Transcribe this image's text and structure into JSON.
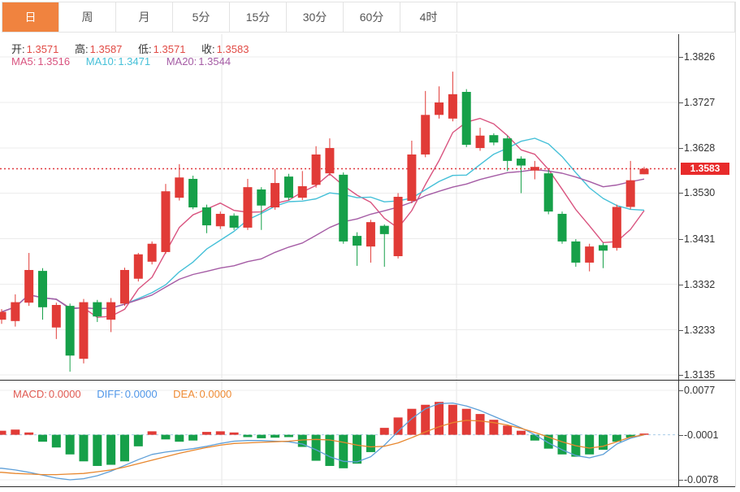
{
  "tabs": [
    {
      "label": "日",
      "active": true
    },
    {
      "label": "周",
      "active": false
    },
    {
      "label": "月",
      "active": false
    },
    {
      "label": "5分",
      "active": false
    },
    {
      "label": "15分",
      "active": false
    },
    {
      "label": "30分",
      "active": false
    },
    {
      "label": "60分",
      "active": false
    },
    {
      "label": "4时",
      "active": false
    }
  ],
  "ohlc_legend": {
    "open_label": "开:",
    "open_value": "1.3571",
    "high_label": "高:",
    "high_value": "1.3587",
    "low_label": "低:",
    "low_value": "1.3571",
    "close_label": "收:",
    "close_value": "1.3583"
  },
  "ma_legend": {
    "ma5_label": "MA5:",
    "ma5_value": "1.3516",
    "ma10_label": "MA10:",
    "ma10_value": "1.3471",
    "ma20_label": "MA20:",
    "ma20_value": "1.3544"
  },
  "macd_legend": {
    "macd_label": "MACD:",
    "macd_value": "0.0000",
    "diff_label": "DIFF:",
    "diff_value": "0.0000",
    "dea_label": "DEA:",
    "dea_value": "0.0000"
  },
  "price_axis": {
    "ticks": [
      {
        "label": "1.3826",
        "price": 1.3826
      },
      {
        "label": "1.3727",
        "price": 1.3727
      },
      {
        "label": "1.3628",
        "price": 1.3628
      },
      {
        "label": "1.3530",
        "price": 1.353
      },
      {
        "label": "1.3431",
        "price": 1.3431
      },
      {
        "label": "1.3332",
        "price": 1.3332
      },
      {
        "label": "1.3233",
        "price": 1.3233
      },
      {
        "label": "1.3135",
        "price": 1.3135
      }
    ],
    "last_price_tag": {
      "label": "1.3583",
      "price": 1.3583
    }
  },
  "macd_axis": {
    "ticks": [
      {
        "label": "0.0077",
        "value": 0.0077
      },
      {
        "label": "-0.0001",
        "value": -0.0001
      },
      {
        "label": "-0.0078",
        "value": -0.0078
      }
    ]
  },
  "colors": {
    "up": "#e13b37",
    "down": "#16a049",
    "ma5": "#d9537f",
    "ma10": "#45c0d8",
    "ma20": "#a55ca5",
    "diff_line": "#5e9fd8",
    "dea_line": "#e8872e",
    "zero_dash": "#a8cbe8",
    "dotted_price_line": "#e0393f",
    "tag_bg": "#e82b2b",
    "tab_active_bg": "#f0833f",
    "grid": "#ececec",
    "vgrid": "#e6e6e6",
    "value_red": "#e14a44",
    "diff_text": "#4f96e8",
    "dea_text": "#ef8b34",
    "macd_text": "#e05a52"
  },
  "chart_data": {
    "type": "candlestick",
    "title": "",
    "legend_position": "top-left",
    "grid": true,
    "price_range": [
      1.3135,
      1.3826
    ],
    "macd_range": [
      -0.0078,
      0.0077
    ],
    "last_price": 1.3583,
    "ohlc_order": [
      "open",
      "high",
      "low",
      "close"
    ],
    "candles": [
      [
        1.3255,
        1.3278,
        1.3246,
        1.3272
      ],
      [
        1.3252,
        1.331,
        1.324,
        1.3293
      ],
      [
        1.3292,
        1.34,
        1.3285,
        1.3363
      ],
      [
        1.3361,
        1.3367,
        1.3255,
        1.3282
      ],
      [
        1.3238,
        1.3292,
        1.3213,
        1.3287
      ],
      [
        1.3285,
        1.329,
        1.3142,
        1.3177
      ],
      [
        1.317,
        1.33,
        1.316,
        1.3293
      ],
      [
        1.3293,
        1.3298,
        1.325,
        1.3262
      ],
      [
        1.3255,
        1.3302,
        1.3228,
        1.3293
      ],
      [
        1.329,
        1.3368,
        1.3285,
        1.3363
      ],
      [
        1.3344,
        1.34,
        1.3338,
        1.3397
      ],
      [
        1.3381,
        1.3425,
        1.3375,
        1.342
      ],
      [
        1.3402,
        1.355,
        1.3398,
        1.3534
      ],
      [
        1.352,
        1.3593,
        1.3514,
        1.3564
      ],
      [
        1.3561,
        1.3568,
        1.3495,
        1.3499
      ],
      [
        1.3499,
        1.3505,
        1.3443,
        1.346
      ],
      [
        1.3458,
        1.349,
        1.3452,
        1.3485
      ],
      [
        1.3481,
        1.3486,
        1.345,
        1.3455
      ],
      [
        1.3455,
        1.3561,
        1.345,
        1.3543
      ],
      [
        1.3538,
        1.3543,
        1.345,
        1.3503
      ],
      [
        1.3499,
        1.3582,
        1.3494,
        1.3552
      ],
      [
        1.3566,
        1.3572,
        1.3515,
        1.352
      ],
      [
        1.352,
        1.3578,
        1.3515,
        1.3545
      ],
      [
        1.3548,
        1.3632,
        1.3542,
        1.3614
      ],
      [
        1.3573,
        1.3649,
        1.3568,
        1.3628
      ],
      [
        1.357,
        1.3575,
        1.342,
        1.3425
      ],
      [
        1.3437,
        1.3445,
        1.3372,
        1.3416
      ],
      [
        1.3414,
        1.3472,
        1.3379,
        1.3467
      ],
      [
        1.3459,
        1.3462,
        1.337,
        1.3441
      ],
      [
        1.3393,
        1.353,
        1.3388,
        1.3522
      ],
      [
        1.3513,
        1.3644,
        1.3508,
        1.3614
      ],
      [
        1.3614,
        1.3752,
        1.3608,
        1.37
      ],
      [
        1.37,
        1.3762,
        1.3692,
        1.3727
      ],
      [
        1.3692,
        1.3794,
        1.3686,
        1.3745
      ],
      [
        1.375,
        1.3756,
        1.363,
        1.3635
      ],
      [
        1.3628,
        1.3672,
        1.3622,
        1.3655
      ],
      [
        1.3656,
        1.366,
        1.3634,
        1.364
      ],
      [
        1.3649,
        1.3655,
        1.3578,
        1.36
      ],
      [
        1.3605,
        1.361,
        1.353,
        1.359
      ],
      [
        1.3579,
        1.36,
        1.356,
        1.3587
      ],
      [
        1.3573,
        1.358,
        1.3484,
        1.349
      ],
      [
        1.3485,
        1.349,
        1.342,
        1.3425
      ],
      [
        1.3425,
        1.343,
        1.337,
        1.3379
      ],
      [
        1.3379,
        1.342,
        1.336,
        1.3414
      ],
      [
        1.3417,
        1.3422,
        1.3367,
        1.3405
      ],
      [
        1.3411,
        1.3505,
        1.3405,
        1.35
      ],
      [
        1.35,
        1.36,
        1.3495,
        1.3558
      ],
      [
        1.3571,
        1.3587,
        1.3571,
        1.3583
      ]
    ],
    "ma_periods": [
      5,
      10,
      20
    ],
    "macd": {
      "hist": [
        0.0007,
        0.0009,
        0.0004,
        -0.0012,
        -0.0022,
        -0.0034,
        -0.0046,
        -0.0054,
        -0.0052,
        -0.0046,
        -0.002,
        0.0006,
        -0.0008,
        -0.0012,
        -0.001,
        0.0005,
        0.0006,
        0.0004,
        -0.0004,
        -0.0006,
        -0.0005,
        -0.0004,
        -0.0021,
        -0.0045,
        -0.0054,
        -0.0058,
        -0.005,
        -0.003,
        0.0012,
        0.003,
        0.0045,
        0.0052,
        0.0057,
        0.0052,
        0.0045,
        0.0036,
        0.0026,
        0.0016,
        0.0007,
        -0.001,
        -0.0024,
        -0.0034,
        -0.0038,
        -0.0034,
        -0.0026,
        -0.0012,
        -0.0005,
        0.0
      ],
      "diff": [
        -0.0058,
        -0.0061,
        -0.0065,
        -0.007,
        -0.0075,
        -0.0078,
        -0.0076,
        -0.0071,
        -0.0063,
        -0.0053,
        -0.0043,
        -0.0034,
        -0.003,
        -0.0027,
        -0.0024,
        -0.002,
        -0.0015,
        -0.0011,
        -0.001,
        -0.001,
        -0.0011,
        -0.0012,
        -0.0016,
        -0.0026,
        -0.0038,
        -0.0046,
        -0.0047,
        -0.0038,
        -0.0018,
        0.0006,
        0.0028,
        0.0045,
        0.0054,
        0.0055,
        0.005,
        0.0042,
        0.0032,
        0.0022,
        0.0012,
        0.0,
        -0.0014,
        -0.0026,
        -0.0036,
        -0.004,
        -0.0034,
        -0.0016,
        -0.0006,
        0.0
      ],
      "dea": [
        -0.0065,
        -0.0067,
        -0.0068,
        -0.0069,
        -0.0069,
        -0.0068,
        -0.0067,
        -0.0064,
        -0.0061,
        -0.0056,
        -0.005,
        -0.0044,
        -0.0038,
        -0.0032,
        -0.0027,
        -0.0022,
        -0.0018,
        -0.0015,
        -0.0014,
        -0.0013,
        -0.0012,
        -0.0011,
        -0.0009,
        -0.0008,
        -0.0009,
        -0.0013,
        -0.0018,
        -0.0021,
        -0.002,
        -0.0014,
        -0.0005,
        0.0005,
        0.0014,
        0.0021,
        0.0025,
        0.0024,
        0.0021,
        0.0017,
        0.0011,
        0.0004,
        -0.0004,
        -0.0012,
        -0.0019,
        -0.0023,
        -0.002,
        -0.0012,
        -0.0004,
        0.0
      ]
    }
  }
}
